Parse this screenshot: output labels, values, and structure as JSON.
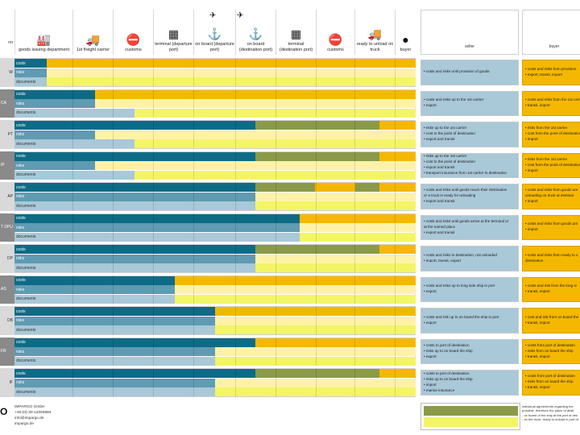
{
  "header": {
    "terms_label": "rm",
    "columns": [
      {
        "label": "goods issuing department",
        "icon": "factory-icon",
        "glyph": "🏭"
      },
      {
        "label": "1st freight carrier",
        "icon": "truck-icon",
        "glyph": "🚚"
      },
      {
        "label": "customs",
        "icon": "no-entry-icon",
        "glyph": "⛔"
      },
      {
        "label": "terminal (departure port)",
        "icon": "terminal-icon",
        "glyph": "▦"
      },
      {
        "label": "on board (departure port)",
        "icon": "anchor-icon",
        "glyph": "⚓"
      },
      {
        "label": "on board (destination port)",
        "icon": "anchor-icon",
        "glyph": "⚓"
      },
      {
        "label": "terminal (destination port)",
        "icon": "terminal-icon",
        "glyph": "▦"
      },
      {
        "label": "customs",
        "icon": "no-entry-icon",
        "glyph": "⛔"
      },
      {
        "label": "ready to unload on truck",
        "icon": "truck-icon",
        "glyph": "🚚"
      },
      {
        "label": "buyer",
        "icon": "person-icon",
        "glyph": "●"
      }
    ],
    "seller_label": "seller",
    "buyer_label": "buyer"
  },
  "bar_labels": {
    "costs": "costs",
    "risks": "risks",
    "documents": "documents"
  },
  "colors": {
    "seller": "#0e6b86",
    "seller_mid": "#5f9bb2",
    "buyer": "#f5b800",
    "buyer_light": "#fff2a8",
    "docs_seller": "#a9c8d8",
    "docs_buyer": "#f3f565",
    "shared": "#8a9a48"
  },
  "rows": [
    {
      "term": "W",
      "costs": 0.08,
      "risks": 0.08,
      "docs": 0.08,
      "shared_start": null,
      "shared_end": null,
      "shared2": null,
      "seller": [
        "• costs and risks until provision of goods"
      ],
      "buyer": [
        "• costs and risks from provision",
        "• export, transit, import"
      ]
    },
    {
      "term": "CA",
      "costs": 0.2,
      "risks": 0.2,
      "docs": 0.3,
      "shared_start": null,
      "shared_end": null,
      "shared2": null,
      "seller": [
        "• costs and risks up to the 1st carrier",
        "• export"
      ],
      "buyer": [
        "• costs and risks from the 1st carr",
        "• transit, import"
      ]
    },
    {
      "term": "PT",
      "costs": 0.6,
      "risks": 0.2,
      "docs": 0.3,
      "shared_start": 0.6,
      "shared_end": 0.91,
      "shared2": null,
      "seller": [
        "• risks up to the 1st carrier",
        "• cost to the point of destination",
        "• export and transit"
      ],
      "buyer": [
        "• risks from the 1st carrier",
        "• cost from the point of destination",
        "• import"
      ]
    },
    {
      "term": "IP",
      "costs": 0.6,
      "risks": 0.2,
      "docs": 0.3,
      "shared_start": 0.6,
      "shared_end": 0.91,
      "shared2": null,
      "seller": [
        "• risks up to the 1st carrier",
        "• cost to the point of destination",
        "• export and transit",
        "• transport insurance from 1st carrier to destination"
      ],
      "buyer": [
        "• risks from the 1st carrier",
        "• cost from the point of destination",
        "• import"
      ]
    },
    {
      "term": "AP",
      "costs": 0.6,
      "risks": 0.6,
      "docs": 0.6,
      "shared_start": 0.6,
      "shared_end": 0.75,
      "shared2": [
        0.85,
        0.91
      ],
      "seller": [
        "• costs and risks until goods reach their destination",
        "   or a truck is ready for unloading",
        "• export and transit"
      ],
      "buyer": [
        "• costs and risks from goods are",
        "   unloading on truck at destinat",
        "• import"
      ]
    },
    {
      "term": "T DPU",
      "costs": 0.71,
      "risks": 0.71,
      "docs": 0.71,
      "shared_start": null,
      "shared_end": null,
      "shared2": null,
      "seller": [
        "• costs and risks until goods arrive at the terminal or",
        "   at the named place",
        "• export and transit"
      ],
      "buyer": [
        "• costs and risks from goods arri",
        "• import"
      ]
    },
    {
      "term": "DP",
      "costs": 0.91,
      "risks": 0.6,
      "docs": 0.6,
      "shared_start": 0.6,
      "shared_end": 0.91,
      "shared2": null,
      "seller": [
        "• costs and risks to destination, not unloaded",
        "• import, transit, export"
      ],
      "buyer": [
        "• costs and risks from ready to u",
        "   destination"
      ]
    },
    {
      "term": "AS",
      "costs": 0.4,
      "risks": 0.4,
      "docs": 0.4,
      "shared_start": null,
      "shared_end": null,
      "shared2": null,
      "seller": [
        "• costs and risks up to long side ship in port",
        "• export"
      ],
      "buyer": [
        "• costs and risk from the long si",
        "• transit, import"
      ]
    },
    {
      "term": "OB",
      "costs": 0.5,
      "risks": 0.5,
      "docs": 0.5,
      "shared_start": null,
      "shared_end": null,
      "shared2": null,
      "seller": [
        "• costs and risk up to on board the ship in port",
        "• export"
      ],
      "buyer": [
        "• cost and risk from on board the",
        "• transit, import"
      ]
    },
    {
      "term": "FR",
      "costs": 0.6,
      "risks": 0.5,
      "docs": 0.5,
      "shared_start": null,
      "shared_end": null,
      "shared2": null,
      "seller": [
        "• costs to port of destination",
        "• risks up to on board the ship",
        "• export"
      ],
      "buyer": [
        "• costs from port of destination",
        "• risks from on board the ship",
        "• transit, import"
      ]
    },
    {
      "term": "IF",
      "costs": 0.6,
      "risks": 0.5,
      "docs": 0.5,
      "shared_start": 0.6,
      "shared_end": 0.91,
      "shared2": null,
      "seller": [
        "• costs to port of destination",
        "• risks up to on board the ship",
        "• import",
        "• marine insurance"
      ],
      "buyer": [
        "• costs from port of destination",
        "• risks from on board the ship",
        "• transit, import"
      ]
    }
  ],
  "footer": {
    "logo": "O",
    "lines": [
      "IMPARGO GmbH",
      "+49-(0)-30-12093884",
      "info@impargo.de",
      "impargo.de"
    ]
  },
  "legend": {
    "lines": [
      "individual agreements regarding the",
      "possible, therefore the place of desti",
      "- on board of the ship at the port of des",
      "- on the truck, ready to unload in port of"
    ]
  }
}
